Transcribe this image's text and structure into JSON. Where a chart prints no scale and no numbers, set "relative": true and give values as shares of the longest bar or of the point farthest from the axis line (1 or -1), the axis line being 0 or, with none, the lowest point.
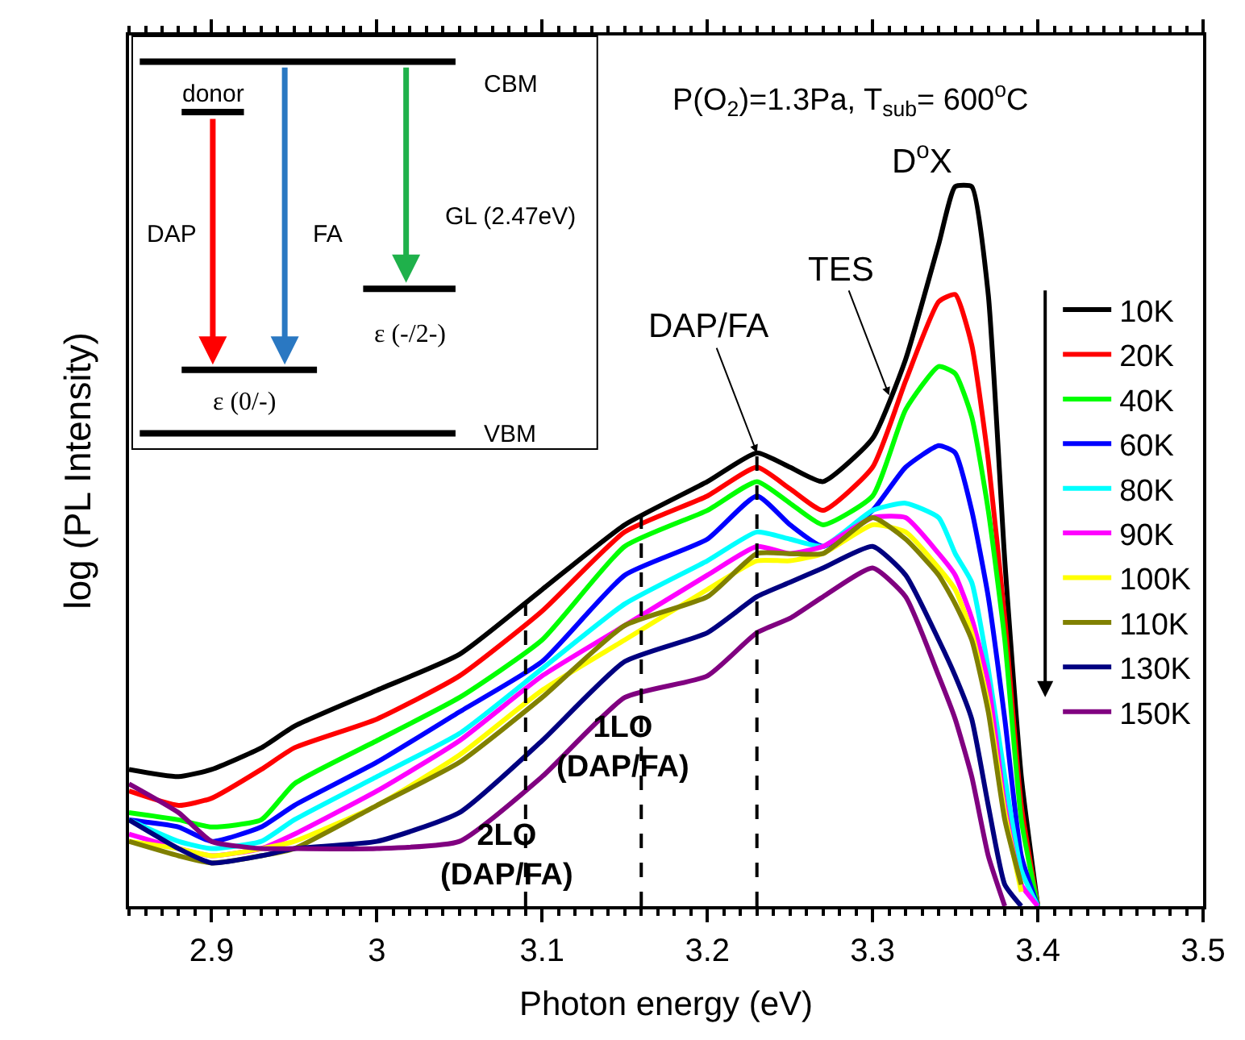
{
  "chart_data": {
    "type": "line",
    "relative": true,
    "xlabel": "Photon energy (eV)",
    "ylabel": "log (PL Intensity)",
    "xlim": [
      2.85,
      3.5
    ],
    "xticks": [
      2.9,
      3.0,
      3.1,
      3.2,
      3.3,
      3.4,
      3.5
    ],
    "legend": "right",
    "marker": "none",
    "line_style": "solid",
    "x": [
      2.85,
      2.88,
      2.9,
      2.93,
      2.95,
      3.0,
      3.05,
      3.1,
      3.15,
      3.2,
      3.23,
      3.25,
      3.27,
      3.3,
      3.32,
      3.34,
      3.35,
      3.36,
      3.37,
      3.38,
      3.39,
      3.4
    ],
    "series": [
      {
        "name": "10K",
        "color": "#000000",
        "values": [
          0.19,
          0.18,
          0.19,
          0.22,
          0.25,
          0.3,
          0.35,
          0.44,
          0.53,
          0.59,
          0.63,
          0.61,
          0.59,
          0.65,
          0.76,
          0.92,
          1.0,
          1.0,
          0.85,
          0.48,
          0.18,
          0.0
        ]
      },
      {
        "name": "20K",
        "color": "#ff0000",
        "values": [
          0.16,
          0.14,
          0.15,
          0.19,
          0.22,
          0.26,
          0.32,
          0.41,
          0.52,
          0.57,
          0.61,
          0.58,
          0.55,
          0.61,
          0.73,
          0.84,
          0.85,
          0.78,
          0.62,
          0.4,
          0.14,
          0.0
        ]
      },
      {
        "name": "40K",
        "color": "#00ff00",
        "values": [
          0.13,
          0.12,
          0.11,
          0.12,
          0.17,
          0.23,
          0.29,
          0.37,
          0.5,
          0.55,
          0.59,
          0.56,
          0.53,
          0.57,
          0.69,
          0.75,
          0.74,
          0.68,
          0.55,
          0.37,
          0.12,
          0.0
        ]
      },
      {
        "name": "60K",
        "color": "#0000ff",
        "values": [
          0.12,
          0.11,
          0.09,
          0.11,
          0.14,
          0.2,
          0.27,
          0.34,
          0.46,
          0.51,
          0.57,
          0.53,
          0.5,
          0.55,
          0.61,
          0.64,
          0.63,
          0.55,
          0.43,
          0.26,
          0.07,
          0.0
        ]
      },
      {
        "name": "80K",
        "color": "#00ffff",
        "values": [
          0.12,
          0.09,
          0.08,
          0.09,
          0.12,
          0.18,
          0.24,
          0.33,
          0.42,
          0.48,
          0.52,
          0.51,
          0.5,
          0.55,
          0.56,
          0.54,
          0.49,
          0.45,
          0.33,
          0.18,
          0.05,
          0.0
        ]
      },
      {
        "name": "90K",
        "color": "#ff00ff",
        "values": [
          0.1,
          0.08,
          0.07,
          0.08,
          0.1,
          0.16,
          0.23,
          0.32,
          0.39,
          0.46,
          0.5,
          0.49,
          0.5,
          0.54,
          0.54,
          0.49,
          0.46,
          0.4,
          0.31,
          0.14,
          0.03,
          0.0
        ]
      },
      {
        "name": "100K",
        "color": "#ffff00",
        "values": [
          0.09,
          0.08,
          0.07,
          0.08,
          0.09,
          0.14,
          0.21,
          0.3,
          0.37,
          0.44,
          0.48,
          0.48,
          0.49,
          0.53,
          0.52,
          0.47,
          0.44,
          0.38,
          0.28,
          0.13,
          0.02,
          null
        ]
      },
      {
        "name": "110K",
        "color": "#808000",
        "values": [
          0.09,
          0.07,
          0.06,
          0.07,
          0.08,
          0.14,
          0.2,
          0.29,
          0.39,
          0.43,
          0.49,
          0.49,
          0.49,
          0.54,
          0.51,
          0.46,
          0.42,
          0.37,
          0.27,
          0.12,
          0.03,
          null
        ]
      },
      {
        "name": "130K",
        "color": "#000080",
        "values": [
          0.12,
          0.08,
          0.06,
          0.07,
          0.08,
          0.09,
          0.13,
          0.23,
          0.34,
          0.38,
          0.43,
          0.45,
          0.47,
          0.5,
          0.46,
          0.37,
          0.32,
          0.26,
          0.14,
          0.03,
          0.0,
          null
        ]
      },
      {
        "name": "150K",
        "color": "#800080",
        "values": [
          0.17,
          0.13,
          0.09,
          0.08,
          0.08,
          0.08,
          0.09,
          0.18,
          0.29,
          0.32,
          0.38,
          0.4,
          0.43,
          0.47,
          0.43,
          0.32,
          0.26,
          0.18,
          0.07,
          0.0,
          null,
          null
        ]
      }
    ],
    "ref_lines": [
      {
        "axis": "x",
        "value": 3.09,
        "label": "2LO\n(DAP/FA)",
        "color": "#000000",
        "line_style": "dashed"
      },
      {
        "axis": "x",
        "value": 3.16,
        "label": "1LO\n(DAP/FA)",
        "color": "#000000",
        "line_style": "dashed"
      },
      {
        "axis": "x",
        "value": 3.23,
        "color": "#000000",
        "line_style": "dashed"
      }
    ],
    "annotations": [
      "P(O$_{2}$)=1.3Pa, T$_{sub}$= 600$^{o}$C",
      "D$^{o}$X",
      "CBM",
      "donor",
      "DAP",
      "FA",
      "GL (2.47eV)",
      "ε (0/-)",
      "ε (-/2-)",
      "VBM",
      {
        "text": "DAP/FA",
        "x": 3.23,
        "y": 0.63
      },
      {
        "text": "TES",
        "x": 3.31,
        "y": 0.71
      }
    ]
  }
}
